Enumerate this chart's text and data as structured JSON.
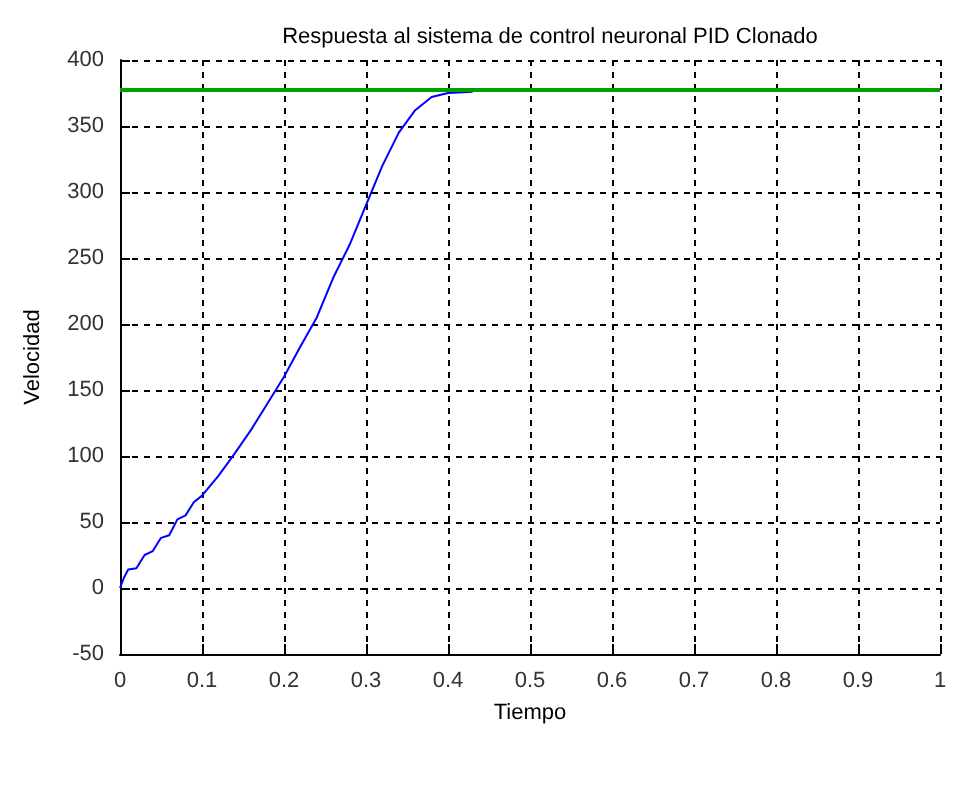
{
  "chart_data": {
    "type": "line",
    "title": "Respuesta al sistema de control neuronal PID Clonado",
    "xlabel": "Tiempo",
    "ylabel": "Velocidad",
    "xlim": [
      0,
      1
    ],
    "xticks": [
      0,
      0.1,
      0.2,
      0.3,
      0.4,
      0.5,
      0.6,
      0.7,
      0.8,
      0.9,
      1
    ],
    "ylim": [
      -50,
      400
    ],
    "yticks": [
      -50,
      0,
      50,
      100,
      150,
      200,
      250,
      300,
      350,
      400
    ],
    "grid": true,
    "marker": "none",
    "line_style": "solid",
    "series": [
      {
        "color": "#0000ff",
        "x": [
          0,
          0.005,
          0.01,
          0.02,
          0.03,
          0.04,
          0.05,
          0.06,
          0.07,
          0.08,
          0.09,
          0.1,
          0.12,
          0.14,
          0.16,
          0.18,
          0.2,
          0.22,
          0.24,
          0.26,
          0.28,
          0.3,
          0.32,
          0.34,
          0.36,
          0.38,
          0.4,
          0.43
        ],
        "values": [
          0,
          8,
          14,
          15,
          25,
          28,
          38,
          40,
          52,
          55,
          65,
          70,
          85,
          102,
          120,
          140,
          160,
          183,
          205,
          235,
          260,
          290,
          320,
          345,
          362,
          372,
          375,
          376
        ]
      }
    ],
    "ref_lines": [
      {
        "axis": "y",
        "value": 377,
        "color": "#00a000",
        "line_style": "solid"
      }
    ]
  }
}
